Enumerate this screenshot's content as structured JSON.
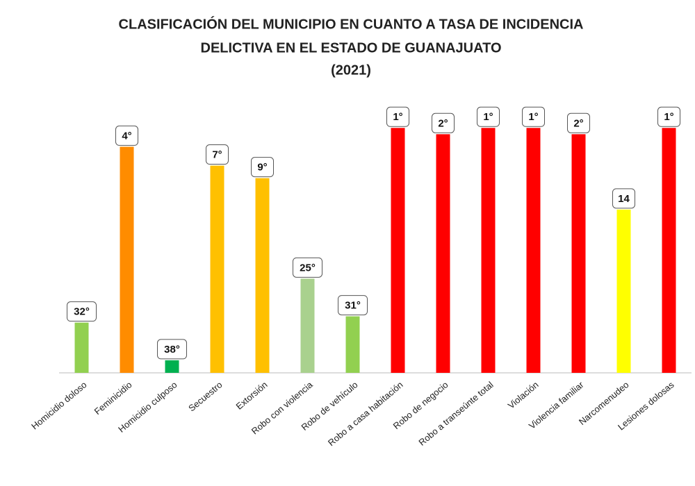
{
  "chart_data": {
    "type": "bar",
    "title": [
      "CLASIFICACIÓN DEL MUNICIPIO EN CUANTO A TASA DE INCIDENCIA",
      "DELICTIVA EN EL ESTADO DE GUANAJUATO",
      "(2021)"
    ],
    "categories": [
      "Homicidio doloso",
      "Feminicidio",
      "Homicidio culposo",
      "Secuestro",
      "Extorsión",
      "Robo con violencia",
      "Robo de vehículo",
      "Robo a casa habitación",
      "Robo de negocio",
      "Robo a transeúnte total",
      "Violación",
      "Violencia familiar",
      "Narcomenudeo",
      "Lesiones dolosas"
    ],
    "values": [
      32,
      4,
      38,
      7,
      9,
      25,
      31,
      1,
      2,
      1,
      1,
      2,
      14,
      1
    ],
    "value_labels": [
      "32°",
      "4°",
      "38°",
      "7°",
      "9°",
      "25°",
      "31°",
      "1°",
      "2°",
      "1°",
      "1°",
      "2°",
      "14",
      "1°"
    ],
    "colors": [
      "#92d050",
      "#ff8c00",
      "#00b050",
      "#ffc000",
      "#ffc000",
      "#a9d18e",
      "#92d050",
      "#ff0000",
      "#ff0000",
      "#ff0000",
      "#ff0000",
      "#ff0000",
      "#ffff00",
      "#ff0000"
    ],
    "ylim": [
      40,
      -5
    ]
  }
}
